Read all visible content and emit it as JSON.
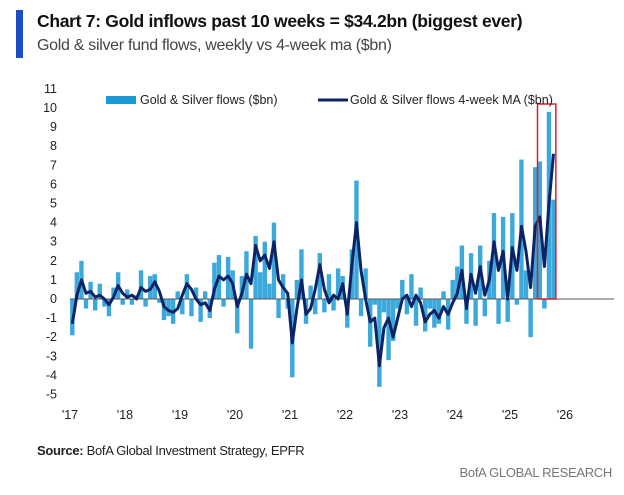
{
  "header": {
    "title": "Chart 7: Gold inflows past 10 weeks = $34.2bn (biggest ever)",
    "subtitle": "Gold & silver fund flows, weekly vs 4-week ma ($bn)"
  },
  "footer": {
    "source_label": "Source:",
    "source_text": " BofA Global Investment Strategy, EPFR",
    "brand": "BofA GLOBAL RESEARCH"
  },
  "chart_data": {
    "type": "bar",
    "title": "",
    "xlabel": "",
    "ylabel": "",
    "ylim": [
      -5,
      11
    ],
    "yticks": [
      "11",
      "10",
      "9",
      "8",
      "7",
      "6",
      "5",
      "4",
      "3",
      "2",
      "1",
      "0",
      "-1",
      "-2",
      "-3",
      "-4",
      "-5"
    ],
    "xticks": [
      "'17",
      "'18",
      "'19",
      "'20",
      "'21",
      "'22",
      "'23",
      "'24",
      "'25",
      "'26"
    ],
    "x_start": "2017-01",
    "x_frequency": "monthly",
    "legend_position": "top",
    "highlight": {
      "from": "2025-07",
      "to": "2025-10",
      "color": "#e02020"
    },
    "series": [
      {
        "name": "Gold & Silver flows ($bn)",
        "type": "bar",
        "color": "#1a9ad6",
        "values": [
          -1.9,
          1.4,
          2.0,
          -0.5,
          0.9,
          -0.6,
          0.8,
          -0.4,
          -0.9,
          0.6,
          1.4,
          -0.3,
          0.5,
          -0.3,
          0.2,
          1.5,
          -0.4,
          1.2,
          1.3,
          -0.2,
          -1.1,
          -0.9,
          -1.3,
          0.4,
          -0.8,
          1.3,
          -0.9,
          0.6,
          -1.2,
          0.4,
          -1.0,
          1.9,
          2.3,
          -0.4,
          2.2,
          1.5,
          -1.8,
          1.2,
          2.5,
          -2.6,
          3.3,
          1.4,
          3.0,
          0.8,
          4.0,
          -1.0,
          1.3,
          -0.5,
          -4.1,
          1.0,
          2.6,
          -1.3,
          0.7,
          -0.8,
          2.4,
          -0.7,
          1.3,
          -0.6,
          1.6,
          1.2,
          -1.5,
          2.6,
          6.2,
          -0.9,
          1.6,
          -2.5,
          -0.3,
          -4.6,
          -0.7,
          -3.2,
          -2.2,
          -0.5,
          1.0,
          -0.8,
          1.3,
          -1.4,
          0.6,
          -1.7,
          -0.5,
          -1.5,
          -1.3,
          0.4,
          -1.6,
          1.0,
          1.7,
          2.8,
          -1.3,
          2.4,
          -1.4,
          2.8,
          -0.9,
          2.0,
          4.5,
          -1.3,
          4.3,
          -1.2,
          4.5,
          -0.3,
          7.3,
          1.5,
          -2.0,
          6.9,
          7.2,
          -0.5,
          9.8,
          5.2
        ]
      },
      {
        "name": "Gold & Silver flows 4-week MA ($bn)",
        "type": "line",
        "color": "#0c2366",
        "values": [
          -1.3,
          0.2,
          1.0,
          0.3,
          0.4,
          0.1,
          0.2,
          0.0,
          -0.3,
          0.1,
          0.7,
          0.3,
          0.1,
          0.2,
          0.0,
          0.6,
          0.4,
          0.5,
          0.9,
          0.4,
          -0.4,
          -0.6,
          -0.7,
          -0.5,
          0.2,
          0.8,
          0.5,
          0.0,
          -0.3,
          -0.2,
          -0.6,
          0.5,
          1.2,
          1.0,
          1.2,
          0.8,
          -0.4,
          0.3,
          1.3,
          0.8,
          2.8,
          2.0,
          2.3,
          1.6,
          3.0,
          1.0,
          0.6,
          0.3,
          -2.3,
          -0.5,
          1.0,
          -0.8,
          -0.5,
          0.5,
          1.8,
          0.5,
          -0.2,
          0.2,
          0.0,
          0.8,
          -0.8,
          1.8,
          4.0,
          1.5,
          0.0,
          -1.2,
          -1.0,
          -3.5,
          -1.5,
          -1.0,
          -2.0,
          -1.0,
          0.0,
          0.2,
          -0.4,
          0.2,
          -0.2,
          -1.2,
          -0.8,
          -0.6,
          -1.0,
          -0.4,
          -0.8,
          -0.2,
          0.3,
          1.5,
          -0.5,
          1.3,
          0.3,
          1.7,
          0.2,
          1.0,
          3.0,
          1.5,
          2.5,
          0.0,
          2.7,
          1.5,
          3.8,
          2.5,
          0.6,
          3.8,
          4.3,
          1.7,
          5.0,
          7.6
        ]
      }
    ]
  }
}
